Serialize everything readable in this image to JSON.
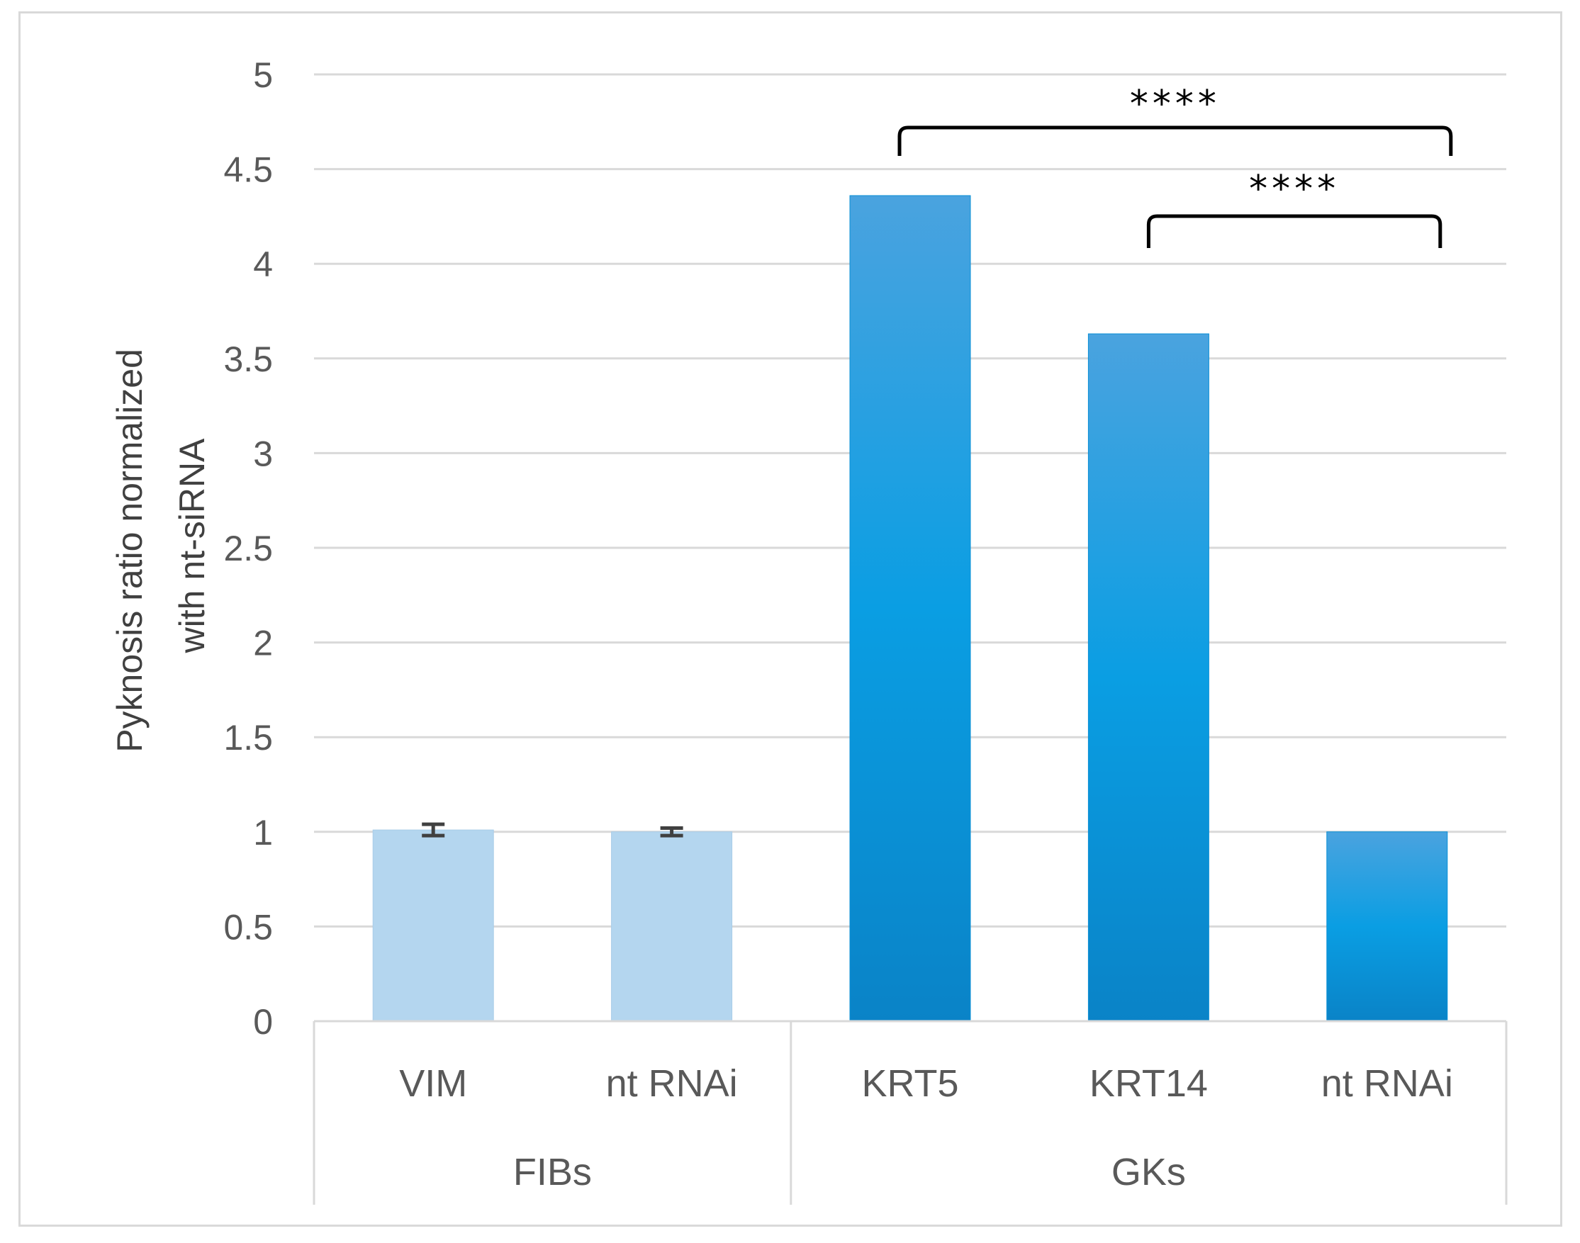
{
  "chart_data": {
    "type": "bar",
    "ylabel_lines": [
      "Pyknosis ratio normalized",
      "with nt-siRNA"
    ],
    "ylim": [
      0,
      5
    ],
    "yticks": [
      0,
      0.5,
      1,
      1.5,
      2,
      2.5,
      3,
      3.5,
      4,
      4.5,
      5
    ],
    "ytick_labels": [
      "0",
      "0.5",
      "1",
      "1.5",
      "2",
      "2.5",
      "3",
      "3.5",
      "4",
      "4.5",
      "5"
    ],
    "grid": true,
    "categories": [
      "VIM",
      "nt RNAi",
      "KRT5",
      "KRT14",
      "nt RNAi"
    ],
    "groups": [
      {
        "label": "FIBs",
        "categories": [
          0,
          1
        ]
      },
      {
        "label": "GKs",
        "categories": [
          2,
          3,
          4
        ]
      }
    ],
    "values": [
      1.01,
      1.0,
      4.36,
      3.63,
      1.0
    ],
    "errors": [
      0.03,
      0.02,
      0,
      0,
      0
    ],
    "bar_colors": [
      "#b4d6ef",
      "#b4d6ef",
      "#0a96dc",
      "#0a96dc",
      "#0a96dc"
    ],
    "significance": [
      {
        "from": 2,
        "to": 4,
        "label": "****"
      },
      {
        "from": 3,
        "to": 4,
        "label": "****"
      }
    ]
  }
}
